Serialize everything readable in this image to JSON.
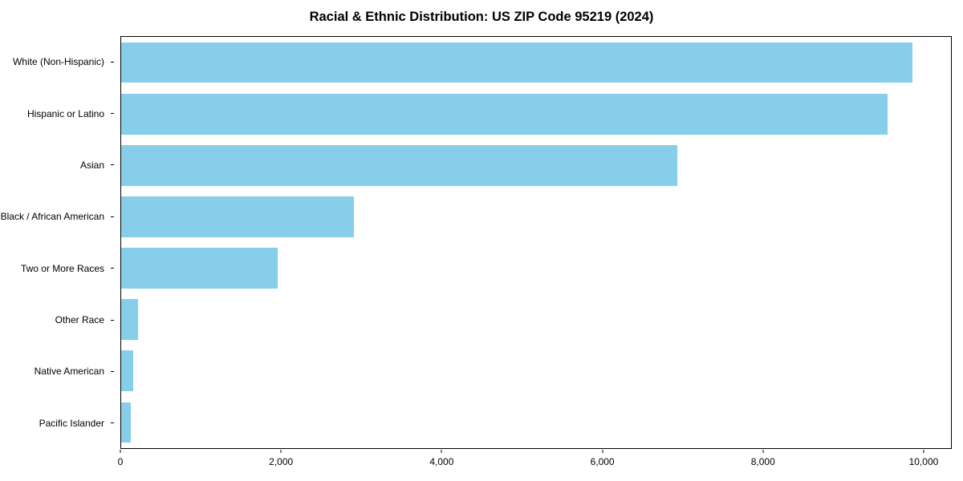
{
  "chart_data": {
    "type": "bar",
    "orientation": "horizontal",
    "title": "Racial & Ethnic Distribution: US ZIP Code 95219 (2024)",
    "categories": [
      "White (Non-Hispanic)",
      "Hispanic or Latino",
      "Asian",
      "Black / African American",
      "Two or More Races",
      "Other Race",
      "Native American",
      "Pacific Islander"
    ],
    "values": [
      9870,
      9560,
      6940,
      2900,
      1950,
      210,
      150,
      120
    ],
    "xlabel": "",
    "ylabel": "",
    "xlim": [
      0,
      10350
    ],
    "x_ticks": [
      0,
      2000,
      4000,
      6000,
      8000,
      10000
    ],
    "x_tick_labels": [
      "0",
      "2,000",
      "4,000",
      "6,000",
      "8,000",
      "10,000"
    ],
    "bar_color": "#87CEEB",
    "grid": false,
    "legend": "none"
  }
}
